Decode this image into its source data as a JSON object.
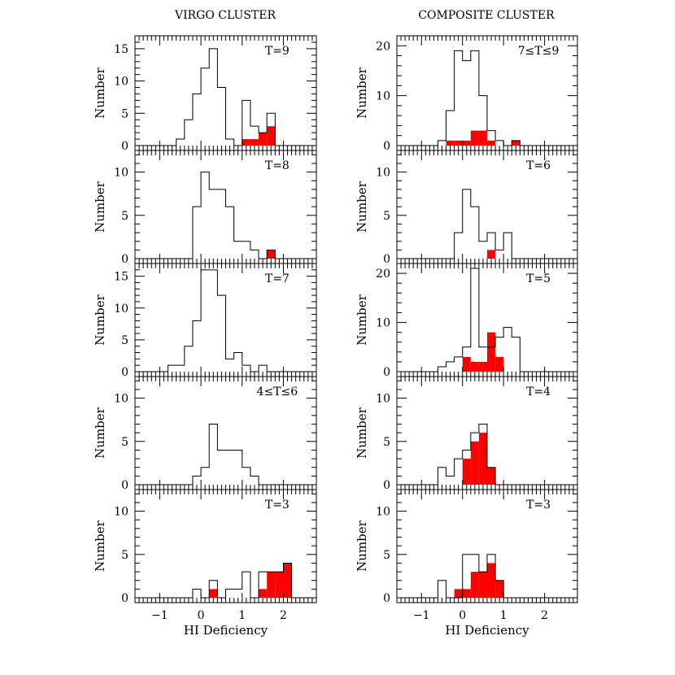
{
  "columns": {
    "left_title": "VIRGO CLUSTER",
    "right_title": "COMPOSITE CLUSTER"
  },
  "axes": {
    "xlabel": "HI Deficiency",
    "ylabel": "Number",
    "xlim": [
      -1.6,
      2.8
    ],
    "bin_width": 0.2,
    "x_tick_labels": [
      "−1",
      "0",
      "1",
      "2"
    ]
  },
  "colors": {
    "deficient_fill": "#ff0000",
    "outline": "#000000",
    "background": "#ffffff"
  },
  "chart_data": [
    {
      "type": "histogram",
      "panel": "virgo-T9",
      "label": "T=9",
      "ylim": [
        0,
        17
      ],
      "y_ticks": [
        0,
        5,
        10,
        15
      ],
      "x_start": -0.6,
      "all_counts": [
        1,
        4,
        8,
        12,
        15,
        9,
        1,
        0,
        7,
        3,
        2,
        5
      ],
      "red_x_start": 1.0,
      "red_counts": [
        1,
        1,
        2,
        3
      ]
    },
    {
      "type": "histogram",
      "panel": "virgo-T8",
      "label": "T=8",
      "ylim": [
        0,
        12.5
      ],
      "y_ticks": [
        0,
        5,
        10
      ],
      "x_start": -0.2,
      "all_counts": [
        6,
        10,
        8,
        8,
        6,
        2,
        2,
        1,
        0,
        1
      ],
      "red_x_start": 1.6,
      "red_counts": [
        1
      ]
    },
    {
      "type": "histogram",
      "panel": "virgo-T7",
      "label": "T=7",
      "ylim": [
        0,
        17
      ],
      "y_ticks": [
        0,
        5,
        10,
        15
      ],
      "x_start": -0.8,
      "all_counts": [
        1,
        1,
        4,
        8,
        16,
        16,
        12,
        2,
        3,
        1,
        0,
        1
      ],
      "red_x_start": null,
      "red_counts": []
    },
    {
      "type": "histogram",
      "panel": "virgo-T4-6",
      "label": "4≤T≤6",
      "ylim": [
        0,
        12.5
      ],
      "y_ticks": [
        0,
        5,
        10
      ],
      "x_start": -0.6,
      "all_counts": [
        0,
        0,
        1,
        2,
        7,
        4,
        4,
        4,
        2,
        1
      ],
      "red_x_start": null,
      "red_counts": []
    },
    {
      "type": "histogram",
      "panel": "virgo-T3",
      "label": "T=3",
      "ylim": [
        0,
        12.5
      ],
      "y_ticks": [
        0,
        5,
        10
      ],
      "x_start": -0.2,
      "all_counts": [
        1,
        0,
        2,
        0,
        1,
        1,
        3,
        0,
        3,
        3,
        3,
        4
      ],
      "red_x_start": 0.2,
      "red_counts": [
        1,
        0,
        0,
        0,
        0,
        0,
        1,
        3,
        3,
        4
      ]
    },
    {
      "type": "histogram",
      "panel": "composite-T7-9",
      "label": "7≤T≤9",
      "ylim": [
        0,
        22
      ],
      "y_ticks": [
        0,
        10,
        20
      ],
      "x_start": -0.6,
      "all_counts": [
        1,
        7,
        19,
        17,
        19,
        10,
        3,
        1,
        0,
        1
      ],
      "red_x_start": -0.4,
      "red_counts": [
        1,
        1,
        1,
        3,
        3,
        1,
        0,
        0,
        1
      ]
    },
    {
      "type": "histogram",
      "panel": "composite-T6",
      "label": "T=6",
      "ylim": [
        0,
        12.5
      ],
      "y_ticks": [
        0,
        5,
        10
      ],
      "x_start": -0.4,
      "all_counts": [
        0,
        3,
        8,
        6,
        2,
        3,
        1,
        3
      ],
      "red_x_start": 0.6,
      "red_counts": [
        1
      ]
    },
    {
      "type": "histogram",
      "panel": "composite-T5",
      "label": "T=5",
      "ylim": [
        0,
        22
      ],
      "y_ticks": [
        0,
        10,
        20
      ],
      "x_start": -0.8,
      "all_counts": [
        0,
        1,
        2,
        3,
        5,
        21,
        5,
        5,
        7,
        9,
        7
      ],
      "red_x_start": 0.0,
      "red_counts": [
        3,
        2,
        2,
        8,
        3
      ]
    },
    {
      "type": "histogram",
      "panel": "composite-T4",
      "label": "T=4",
      "ylim": [
        0,
        12.5
      ],
      "y_ticks": [
        0,
        5,
        10
      ],
      "x_start": -0.8,
      "all_counts": [
        0,
        2,
        1,
        3,
        4,
        6,
        7,
        2
      ],
      "red_x_start": 0.0,
      "red_counts": [
        3,
        5,
        6,
        2
      ]
    },
    {
      "type": "histogram",
      "panel": "composite-T3",
      "label": "T=3",
      "ylim": [
        0,
        12.5
      ],
      "y_ticks": [
        0,
        5,
        10
      ],
      "x_start": -0.8,
      "all_counts": [
        0,
        2,
        0,
        0,
        5,
        5,
        3,
        5,
        2
      ],
      "red_x_start": -0.2,
      "red_counts": [
        1,
        1,
        3,
        3,
        4,
        2
      ]
    }
  ]
}
